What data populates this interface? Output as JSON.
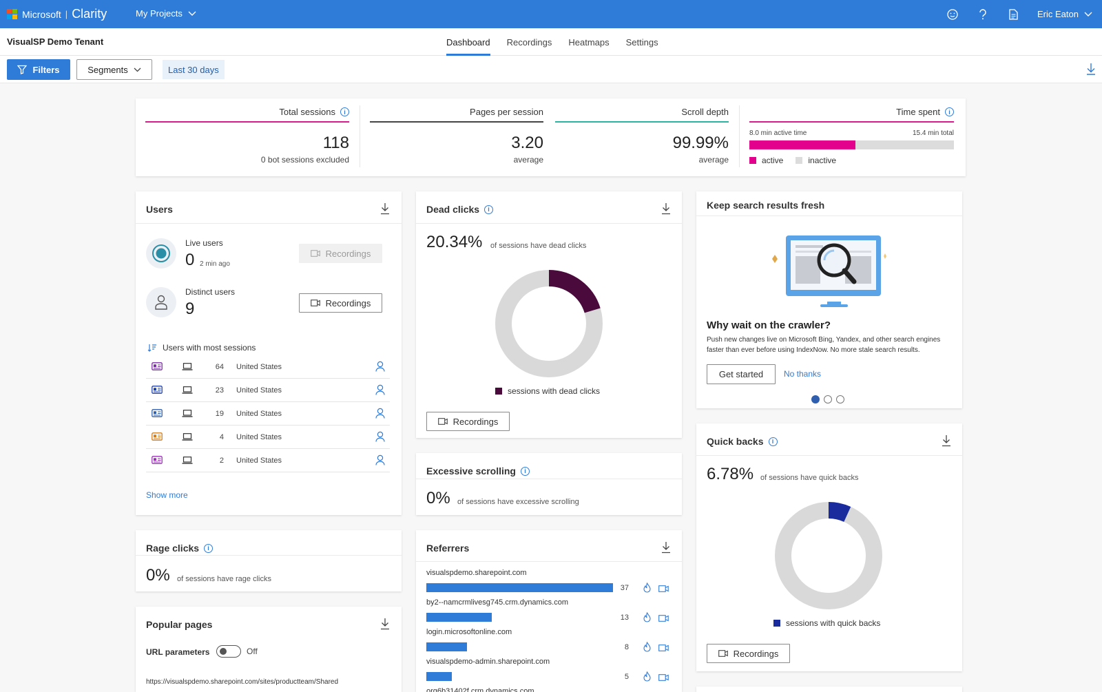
{
  "brand": {
    "company": "Microsoft",
    "product": "Clarity",
    "colors": [
      "#f25022",
      "#7fba00",
      "#00a4ef",
      "#ffb900"
    ]
  },
  "topbar": {
    "projects_label": "My Projects",
    "user_name": "Eric Eaton",
    "icons": [
      "smiley-icon",
      "help-icon",
      "document-icon"
    ]
  },
  "header": {
    "tenant": "VisualSP Demo Tenant",
    "tabs": [
      {
        "label": "Dashboard",
        "active": true
      },
      {
        "label": "Recordings"
      },
      {
        "label": "Heatmaps"
      },
      {
        "label": "Settings"
      }
    ]
  },
  "filters": {
    "filters_label": "Filters",
    "segments_label": "Segments",
    "date_range": "Last 30 days"
  },
  "summary": {
    "total_sessions": {
      "label": "Total sessions",
      "value": "118",
      "sub": "0 bot sessions excluded"
    },
    "pages_per_session": {
      "label": "Pages per session",
      "value": "3.20",
      "sub": "average"
    },
    "scroll_depth": {
      "label": "Scroll depth",
      "value": "99.99%",
      "sub": "average"
    },
    "time_spent": {
      "label": "Time spent",
      "active_time": "8.0 min active time",
      "total_time": "15.4 min total",
      "active_fraction": 0.52,
      "legend_active": "active",
      "legend_inactive": "inactive"
    }
  },
  "users": {
    "title": "Users",
    "live": {
      "label": "Live users",
      "value": "0",
      "ago": "2 min ago",
      "button": "Recordings"
    },
    "distinct": {
      "label": "Distinct users",
      "value": "9",
      "button": "Recordings"
    },
    "most_sessions_label": "Users with most sessions",
    "rows": [
      {
        "sessions": "64",
        "country": "United States",
        "badge_color": "#7a2ea3"
      },
      {
        "sessions": "23",
        "country": "United States",
        "badge_color": "#1f3fa8"
      },
      {
        "sessions": "19",
        "country": "United States",
        "badge_color": "#2f5faa"
      },
      {
        "sessions": "4",
        "country": "United States",
        "badge_color": "#d07c1e"
      },
      {
        "sessions": "2",
        "country": "United States",
        "badge_color": "#9a2fb5"
      }
    ],
    "show_more": "Show more"
  },
  "dead_clicks": {
    "title": "Dead clicks",
    "value": "20.34%",
    "note": "of sessions have dead clicks",
    "fraction": 0.2034,
    "legend": "sessions with dead clicks",
    "button": "Recordings",
    "color": "#4a0a3c"
  },
  "excessive_scrolling": {
    "title": "Excessive scrolling",
    "value": "0%",
    "note": "of sessions have excessive scrolling"
  },
  "referrers": {
    "title": "Referrers",
    "items": [
      {
        "name": "visualspdemo.sharepoint.com",
        "count": 37
      },
      {
        "name": "by2--namcrmlivesg745.crm.dynamics.com",
        "count": 13
      },
      {
        "name": "login.microsoftonline.com",
        "count": 8
      },
      {
        "name": "visualspdemo-admin.sharepoint.com",
        "count": 5
      },
      {
        "name": "org6b31402f.crm.dynamics.com",
        "count": null
      }
    ]
  },
  "promo": {
    "title": "Keep search results fresh",
    "heading": "Why wait on the crawler?",
    "body": "Push new changes live on Microsoft Bing, Yandex, and other search engines faster than ever before using IndexNow. No more stale search results.",
    "primary": "Get started",
    "secondary": "No thanks",
    "pages": 3,
    "current_page": 1
  },
  "quick_backs": {
    "title": "Quick backs",
    "value": "6.78%",
    "note": "of sessions have quick backs",
    "fraction": 0.0678,
    "legend": "sessions with quick backs",
    "button": "Recordings",
    "color": "#1a2b9e"
  },
  "rage_clicks": {
    "title": "Rage clicks",
    "value": "0%",
    "note": "of sessions have rage clicks"
  },
  "popular_pages": {
    "title": "Popular pages",
    "url_params_label": "URL parameters",
    "toggle_state": "Off",
    "first_url": "https://visualspdemo.sharepoint.com/sites/productteam/Shared"
  }
}
